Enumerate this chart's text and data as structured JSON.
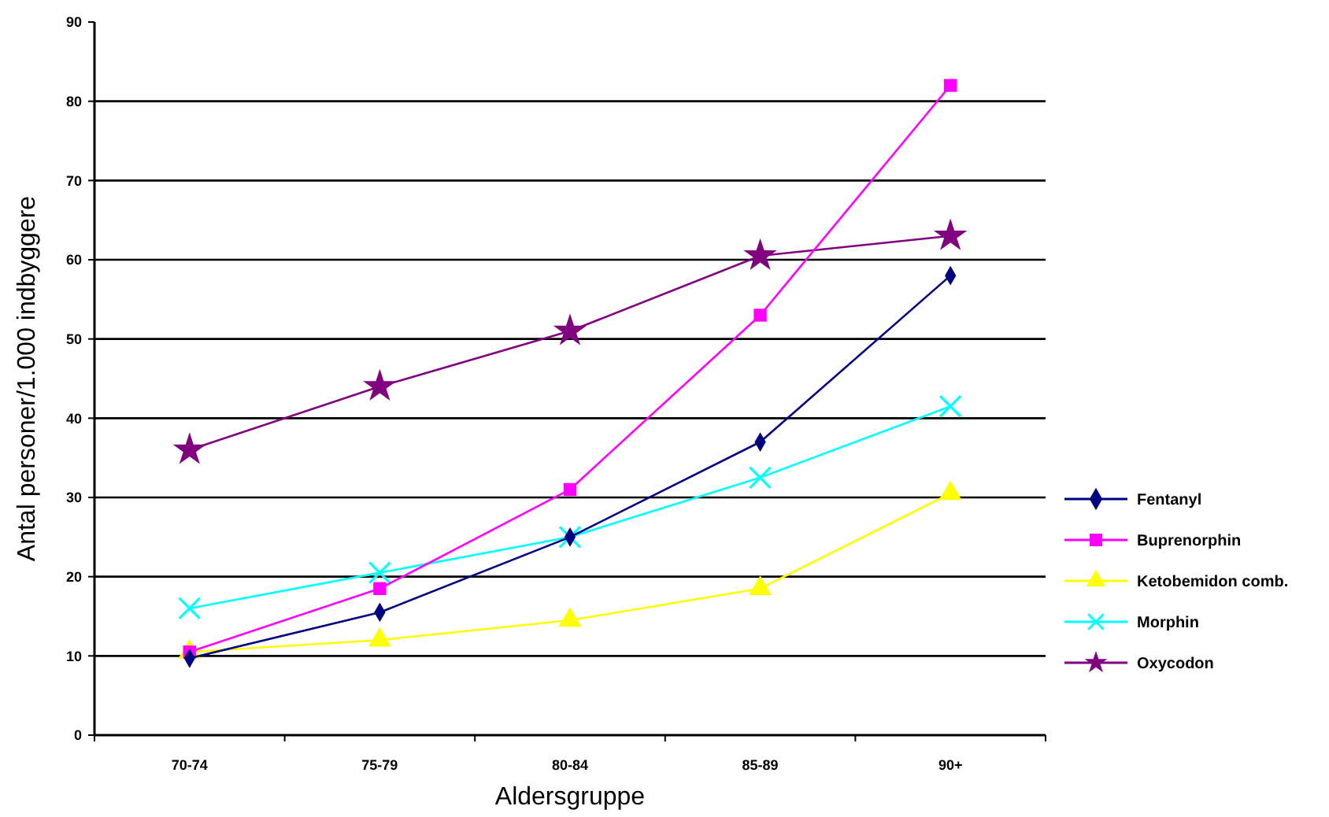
{
  "chart_data": {
    "type": "line",
    "xlabel": "Aldersgruppe",
    "ylabel": "Antal personer/1.000 indbyggere",
    "categories": [
      "70-74",
      "75-79",
      "80-84",
      "85-89",
      "90+"
    ],
    "ylim": [
      0,
      90
    ],
    "yticks": [
      0,
      10,
      20,
      30,
      40,
      50,
      60,
      70,
      80,
      90
    ],
    "grid": "y",
    "legend": "right",
    "series": [
      {
        "name": "Fentanyl",
        "color": "#000080",
        "marker": "diamond",
        "values": [
          9.7,
          15.5,
          25,
          37,
          58
        ]
      },
      {
        "name": "Buprenorphin",
        "color": "#ff00ff",
        "marker": "square",
        "values": [
          10.5,
          18.5,
          31,
          53,
          82
        ]
      },
      {
        "name": "Ketobemidon comb.",
        "color": "#ffff00",
        "marker": "triangle",
        "values": [
          10.5,
          12,
          14.5,
          18.5,
          30.5
        ]
      },
      {
        "name": "Morphin",
        "color": "#00ffff",
        "marker": "cross",
        "values": [
          16,
          20.5,
          25,
          32.5,
          41.5
        ]
      },
      {
        "name": "Oxycodon",
        "color": "#800080",
        "marker": "star",
        "values": [
          36,
          44,
          51,
          60.5,
          63
        ]
      }
    ]
  }
}
